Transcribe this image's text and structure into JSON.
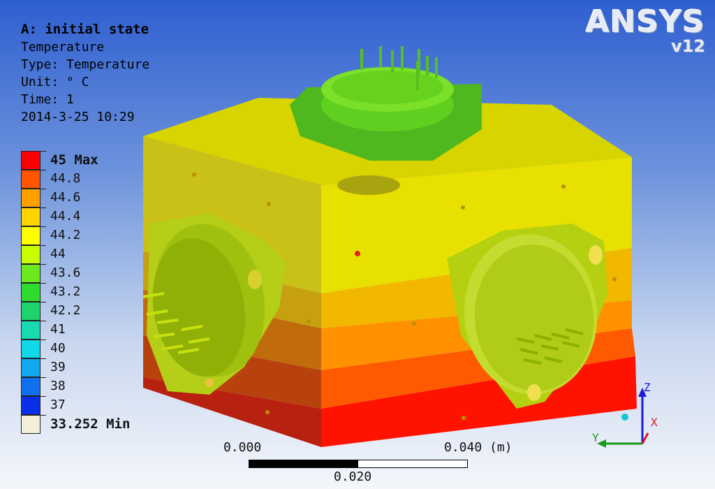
{
  "info": {
    "title": "A: initial state",
    "result": "Temperature",
    "type": "Type: Temperature",
    "unit": "Unit: ° C",
    "time": "Time: 1",
    "timestamp": "2014-3-25 10:29"
  },
  "logo": {
    "brand": "ANSYS",
    "version": "v12"
  },
  "legend": [
    {
      "label": "45 Max",
      "color": "#ff0000",
      "bold": true
    },
    {
      "label": "44.8",
      "color": "#ff5500"
    },
    {
      "label": "44.6",
      "color": "#ff9f00"
    },
    {
      "label": "44.4",
      "color": "#ffd400"
    },
    {
      "label": "44.2",
      "color": "#ffff00"
    },
    {
      "label": "44",
      "color": "#c8ff00"
    },
    {
      "label": "43.6",
      "color": "#6ee81e"
    },
    {
      "label": "43.2",
      "color": "#2edb2e"
    },
    {
      "label": "42.2",
      "color": "#1ed46a"
    },
    {
      "label": "41",
      "color": "#18d9b0"
    },
    {
      "label": "40",
      "color": "#10d8e8"
    },
    {
      "label": "39",
      "color": "#10a8f0"
    },
    {
      "label": "38",
      "color": "#1070f0"
    },
    {
      "label": "37",
      "color": "#0830e8"
    },
    {
      "label": "33.252 Min",
      "color": "#f2eed8",
      "bold": true
    }
  ],
  "scale": {
    "left": "0.000",
    "right": "0.040 (m)",
    "mid": "0.020"
  },
  "axes": {
    "x": "X",
    "y": "Y",
    "z": "Z"
  }
}
